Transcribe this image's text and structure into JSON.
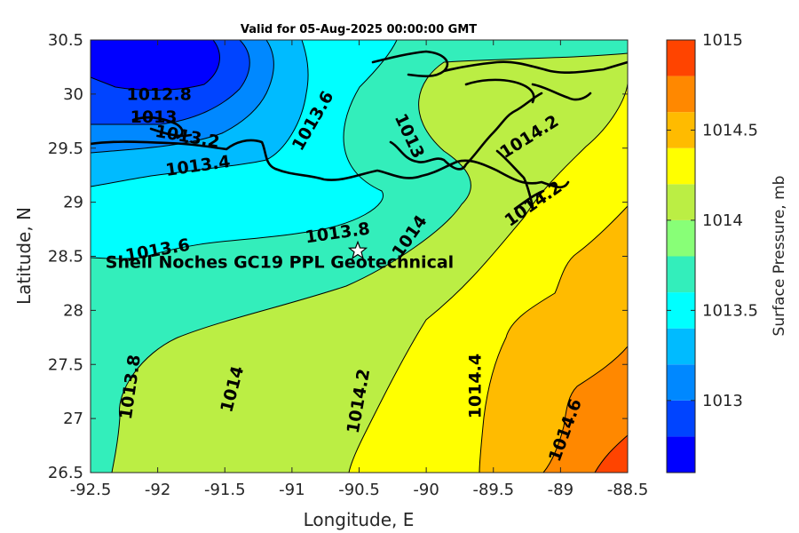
{
  "chart_data": {
    "type": "heatmap",
    "title": "Valid for 05-Aug-2025 00:00:00 GMT",
    "xlabel": "Longitude, E",
    "ylabel": "Latitude, N",
    "xlim": [
      -92.5,
      -88.5
    ],
    "ylim": [
      26.5,
      30.5
    ],
    "xticks": [
      -92.5,
      -92,
      -91.5,
      -91,
      -90.5,
      -90,
      -89.5,
      -89,
      -88.5
    ],
    "yticks": [
      26.5,
      27,
      27.5,
      28,
      28.5,
      29,
      29.5,
      30,
      30.5
    ],
    "colorbar": {
      "label": "Surface Pressure, mb",
      "range": [
        1012.6,
        1015.0
      ],
      "ticks": [
        1013,
        1013.5,
        1014,
        1014.5,
        1015
      ],
      "levels": [
        1012.6,
        1012.8,
        1013.0,
        1013.2,
        1013.4,
        1013.6,
        1013.8,
        1014.0,
        1014.2,
        1014.4,
        1014.6,
        1014.8,
        1015.0
      ],
      "colors": [
        "#0000ff",
        "#0044ff",
        "#0088ff",
        "#00bbff",
        "#00ffff",
        "#33eebb",
        "#88ff77",
        "#bbee44",
        "#ffff00",
        "#ffbb00",
        "#ff8800",
        "#ff4400"
      ]
    },
    "contour_labels": [
      {
        "text": "1012.8",
        "lon": -91.99,
        "lat": 29.99,
        "angle": 0
      },
      {
        "text": "1013",
        "lon": -92.03,
        "lat": 29.78,
        "angle": 0
      },
      {
        "text": "1013.2",
        "lon": -91.78,
        "lat": 29.6,
        "angle": 10
      },
      {
        "text": "1013.4",
        "lon": -91.7,
        "lat": 29.33,
        "angle": -8
      },
      {
        "text": "1013.6",
        "lon": -92.0,
        "lat": 28.55,
        "angle": -10
      },
      {
        "text": "1013.6",
        "lon": -90.84,
        "lat": 29.75,
        "angle": -60
      },
      {
        "text": "1013.8",
        "lon": -90.66,
        "lat": 28.71,
        "angle": -8
      },
      {
        "text": "1014",
        "lon": -90.12,
        "lat": 28.68,
        "angle": -55
      },
      {
        "text": "1013",
        "lon": -90.13,
        "lat": 29.61,
        "angle": 65
      },
      {
        "text": "1014.2",
        "lon": -89.23,
        "lat": 29.6,
        "angle": -32
      },
      {
        "text": "1014.2",
        "lon": -89.2,
        "lat": 28.98,
        "angle": -35
      },
      {
        "text": "1013.8",
        "lon": -92.2,
        "lat": 27.29,
        "angle": -82
      },
      {
        "text": "1014",
        "lon": -91.44,
        "lat": 27.27,
        "angle": -75
      },
      {
        "text": "1014.2",
        "lon": -90.5,
        "lat": 27.16,
        "angle": -80
      },
      {
        "text": "1014.4",
        "lon": -89.63,
        "lat": 27.3,
        "angle": -90
      },
      {
        "text": "1014.6",
        "lon": -88.96,
        "lat": 26.89,
        "angle": -70
      }
    ],
    "site": {
      "label": "Shell Noches   GC19 PPL  Geotechnical",
      "lon": -90.51,
      "lat": 28.55,
      "marker": "star"
    }
  }
}
